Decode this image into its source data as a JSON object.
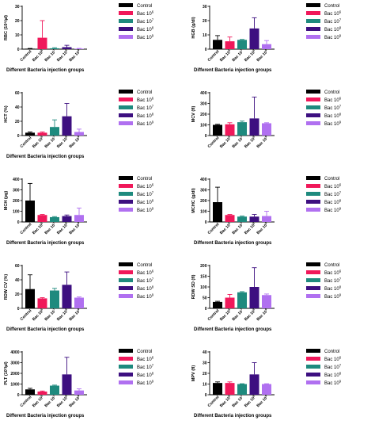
{
  "figure": {
    "groups": [
      "Control",
      "Bac 10^6",
      "Bac 10^7",
      "Bac 10^8",
      "Bac 10^9"
    ],
    "legend_labels": [
      "Control",
      "Bac 10",
      "Bac 10",
      "Bac 10",
      "Bac 10"
    ],
    "legend_exponents": [
      "",
      "6",
      "7",
      "8",
      "9"
    ],
    "tick_base": "Bac 10",
    "tick_exponents": [
      "",
      "6",
      "7",
      "8",
      "9"
    ],
    "colors": [
      "#000000",
      "#f0185a",
      "#1e8a7e",
      "#3d0f80",
      "#b070f0"
    ],
    "xlabel": "Different Bacteria injection groups"
  },
  "chart_data": [
    {
      "type": "bar",
      "ylabel": "RBC (10^6/µl)",
      "ylabel_display": "RBC (10⁶/µl)",
      "categories": [
        "Control",
        "Bac 10^6",
        "Bac 10^7",
        "Bac 10^8",
        "Bac 10^9"
      ],
      "values": [
        0.3,
        8,
        0.6,
        1.4,
        0.3
      ],
      "errors": [
        0.2,
        12,
        0.4,
        1.3,
        0.2
      ],
      "ylim": [
        0,
        30
      ],
      "yticks": [
        0,
        10,
        20,
        30
      ],
      "legend": "right",
      "xlabel": "Different Bacteria injection groups"
    },
    {
      "type": "bar",
      "ylabel": "HGB (g/dl)",
      "ylabel_display": "HGB (g/dl)",
      "categories": [
        "Control",
        "Bac 10^6",
        "Bac 10^7",
        "Bac 10^8",
        "Bac 10^9"
      ],
      "values": [
        6.5,
        5.5,
        6.5,
        14.5,
        3.5
      ],
      "errors": [
        3,
        3,
        0.3,
        7.5,
        2.5
      ],
      "ylim": [
        0,
        30
      ],
      "yticks": [
        0,
        10,
        20,
        30
      ],
      "legend": "right",
      "xlabel": "Different Bacteria injection groups"
    },
    {
      "type": "bar",
      "ylabel": "HCT (%)",
      "ylabel_display": "HCT (%)",
      "categories": [
        "Control",
        "Bac 10^6",
        "Bac 10^7",
        "Bac 10^8",
        "Bac 10^9"
      ],
      "values": [
        4,
        4,
        12,
        27,
        5
      ],
      "errors": [
        1,
        1,
        10,
        18,
        4
      ],
      "ylim": [
        0,
        60
      ],
      "yticks": [
        0,
        20,
        40,
        60
      ],
      "legend": "right",
      "xlabel": "Different Bacteria injection groups"
    },
    {
      "type": "bar",
      "ylabel": "MCV (fl)",
      "ylabel_display": "MCV (fl)",
      "categories": [
        "Control",
        "Bac 10^6",
        "Bac 10^7",
        "Bac 10^8",
        "Bac 10^9"
      ],
      "values": [
        100,
        105,
        125,
        160,
        115
      ],
      "errors": [
        5,
        15,
        10,
        200,
        5
      ],
      "ylim": [
        0,
        400
      ],
      "yticks": [
        0,
        100,
        200,
        300,
        400
      ],
      "legend": "right",
      "xlabel": ""
    },
    {
      "type": "bar",
      "ylabel": "MCH (pg)",
      "ylabel_display": "MCH (pg)",
      "categories": [
        "Control",
        "Bac 10^6",
        "Bac 10^7",
        "Bac 10^8",
        "Bac 10^9"
      ],
      "values": [
        200,
        65,
        45,
        55,
        65
      ],
      "errors": [
        160,
        5,
        5,
        10,
        65
      ],
      "ylim": [
        0,
        400
      ],
      "yticks": [
        0,
        100,
        200,
        300,
        400
      ],
      "legend": "right",
      "xlabel": "Different Bacteria injection groups"
    },
    {
      "type": "bar",
      "ylabel": "MCHC (g/dl)",
      "ylabel_display": "MCHC (g/dl)",
      "categories": [
        "Control",
        "Bac 10^6",
        "Bac 10^7",
        "Bac 10^8",
        "Bac 10^9"
      ],
      "values": [
        185,
        65,
        50,
        50,
        55
      ],
      "errors": [
        140,
        5,
        5,
        20,
        45
      ],
      "ylim": [
        0,
        400
      ],
      "yticks": [
        0,
        100,
        200,
        300,
        400
      ],
      "legend": "right",
      "xlabel": "Different Bacteria injection groups"
    },
    {
      "type": "bar",
      "ylabel": "RDW CV (%)",
      "ylabel_display": "RDW CV (%)",
      "categories": [
        "Control",
        "Bac 10^6",
        "Bac 10^7",
        "Bac 10^8",
        "Bac 10^9"
      ],
      "values": [
        27,
        14,
        25,
        33,
        15
      ],
      "errors": [
        20,
        1,
        3,
        18,
        1
      ],
      "ylim": [
        0,
        60
      ],
      "yticks": [
        0,
        20,
        40,
        60
      ],
      "legend": "right",
      "xlabel": "Different Bacteria injection groups"
    },
    {
      "type": "bar",
      "ylabel": "RDW SD (fl)",
      "ylabel_display": "RDW SD (fl)",
      "categories": [
        "Control",
        "Bac 10^6",
        "Bac 10^7",
        "Bac 10^8",
        "Bac 10^9"
      ],
      "values": [
        30,
        50,
        75,
        100,
        62
      ],
      "errors": [
        3,
        15,
        3,
        90,
        5
      ],
      "ylim": [
        0,
        200
      ],
      "yticks": [
        0,
        50,
        100,
        150,
        200
      ],
      "legend": "right",
      "xlabel": "Different Bacteria injection groups"
    },
    {
      "type": "bar",
      "ylabel": "PLT (10^3/µl)",
      "ylabel_display": "PLT (10³/µl)",
      "categories": [
        "Control",
        "Bac 10^6",
        "Bac 10^7",
        "Bac 10^8",
        "Bac 10^9"
      ],
      "values": [
        500,
        300,
        850,
        1900,
        400
      ],
      "errors": [
        100,
        50,
        50,
        1600,
        150
      ],
      "ylim": [
        0,
        4000
      ],
      "yticks": [
        0,
        1000,
        2000,
        3000,
        4000
      ],
      "legend": "right",
      "xlabel": "Different Bacteria injection groups"
    },
    {
      "type": "bar",
      "ylabel": "MPV (fl)",
      "ylabel_display": "MPV (fl)",
      "categories": [
        "Control",
        "Bac 10^6",
        "Bac 10^7",
        "Bac 10^8",
        "Bac 10^9"
      ],
      "values": [
        11,
        11,
        10,
        19,
        10
      ],
      "errors": [
        1,
        1,
        0.3,
        11,
        0.3
      ],
      "ylim": [
        0,
        40
      ],
      "yticks": [
        0,
        10,
        20,
        30,
        40
      ],
      "legend": "right",
      "xlabel": "Different Bacteria injection groups"
    }
  ]
}
